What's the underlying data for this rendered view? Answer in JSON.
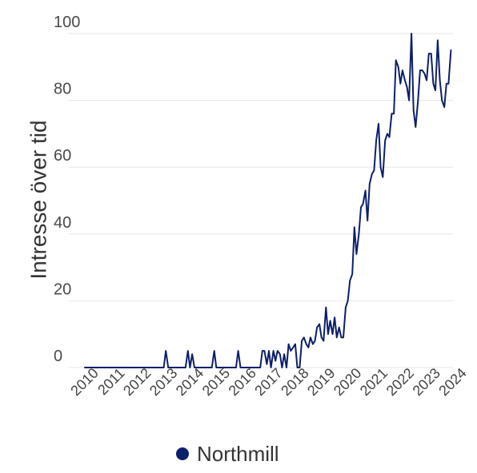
{
  "chart_data": {
    "type": "line",
    "ylabel": "Intresse över tid",
    "xlabel": "",
    "ylim": [
      0,
      100
    ],
    "yticks": [
      0,
      20,
      40,
      60,
      80,
      100
    ],
    "xticks": [
      "2010",
      "2011",
      "2012",
      "2013",
      "2014",
      "2015",
      "2016",
      "2017",
      "2018",
      "2019",
      "2020",
      "2021",
      "2022",
      "2023",
      "2024"
    ],
    "grid": "horizontal",
    "legend_position": "bottom",
    "colors": {
      "series": "#0d1f6b"
    },
    "series": [
      {
        "name": "Northmill",
        "points": [
          [
            2010.0,
            0
          ],
          [
            2013.0,
            0
          ],
          [
            2013.08,
            5
          ],
          [
            2013.17,
            0
          ],
          [
            2013.83,
            0
          ],
          [
            2013.92,
            5
          ],
          [
            2014.0,
            0
          ],
          [
            2014.08,
            4
          ],
          [
            2014.17,
            0
          ],
          [
            2014.83,
            0
          ],
          [
            2014.92,
            5
          ],
          [
            2015.0,
            0
          ],
          [
            2015.75,
            0
          ],
          [
            2015.83,
            5
          ],
          [
            2015.92,
            0
          ],
          [
            2016.67,
            0
          ],
          [
            2016.75,
            5
          ],
          [
            2016.83,
            5
          ],
          [
            2016.92,
            1
          ],
          [
            2017.0,
            5
          ],
          [
            2017.08,
            0
          ],
          [
            2017.17,
            5
          ],
          [
            2017.25,
            2
          ],
          [
            2017.33,
            5
          ],
          [
            2017.42,
            4
          ],
          [
            2017.5,
            0
          ],
          [
            2017.58,
            4
          ],
          [
            2017.67,
            0
          ],
          [
            2017.75,
            7
          ],
          [
            2017.83,
            5
          ],
          [
            2017.92,
            6
          ],
          [
            2018.0,
            7
          ],
          [
            2018.08,
            0
          ],
          [
            2018.17,
            0
          ],
          [
            2018.25,
            8
          ],
          [
            2018.33,
            9
          ],
          [
            2018.42,
            7
          ],
          [
            2018.5,
            6
          ],
          [
            2018.58,
            9
          ],
          [
            2018.67,
            7
          ],
          [
            2018.75,
            8
          ],
          [
            2018.83,
            12
          ],
          [
            2018.92,
            13
          ],
          [
            2019.0,
            9
          ],
          [
            2019.08,
            8
          ],
          [
            2019.17,
            18
          ],
          [
            2019.25,
            10
          ],
          [
            2019.33,
            14
          ],
          [
            2019.42,
            10
          ],
          [
            2019.5,
            15
          ],
          [
            2019.58,
            9
          ],
          [
            2019.67,
            12
          ],
          [
            2019.75,
            9
          ],
          [
            2019.83,
            9
          ],
          [
            2019.92,
            18
          ],
          [
            2020.0,
            20
          ],
          [
            2020.08,
            26
          ],
          [
            2020.17,
            28
          ],
          [
            2020.25,
            42
          ],
          [
            2020.33,
            34
          ],
          [
            2020.42,
            40
          ],
          [
            2020.5,
            48
          ],
          [
            2020.58,
            49
          ],
          [
            2020.67,
            53
          ],
          [
            2020.75,
            44
          ],
          [
            2020.83,
            55
          ],
          [
            2020.92,
            58
          ],
          [
            2021.0,
            59
          ],
          [
            2021.08,
            68
          ],
          [
            2021.17,
            73
          ],
          [
            2021.25,
            60
          ],
          [
            2021.33,
            57
          ],
          [
            2021.42,
            68
          ],
          [
            2021.5,
            70
          ],
          [
            2021.58,
            69
          ],
          [
            2021.67,
            76
          ],
          [
            2021.75,
            76
          ],
          [
            2021.83,
            92
          ],
          [
            2021.92,
            90
          ],
          [
            2022.0,
            85
          ],
          [
            2022.08,
            89
          ],
          [
            2022.17,
            86
          ],
          [
            2022.25,
            84
          ],
          [
            2022.33,
            80
          ],
          [
            2022.42,
            100
          ],
          [
            2022.5,
            77
          ],
          [
            2022.58,
            72
          ],
          [
            2022.67,
            80
          ],
          [
            2022.75,
            89
          ],
          [
            2022.83,
            89
          ],
          [
            2022.92,
            88
          ],
          [
            2023.0,
            86
          ],
          [
            2023.08,
            94
          ],
          [
            2023.17,
            94
          ],
          [
            2023.25,
            85
          ],
          [
            2023.33,
            83
          ],
          [
            2023.42,
            98
          ],
          [
            2023.5,
            86
          ],
          [
            2023.58,
            80
          ],
          [
            2023.67,
            78
          ],
          [
            2023.75,
            85
          ],
          [
            2023.83,
            85
          ],
          [
            2023.92,
            95
          ]
        ]
      }
    ]
  }
}
